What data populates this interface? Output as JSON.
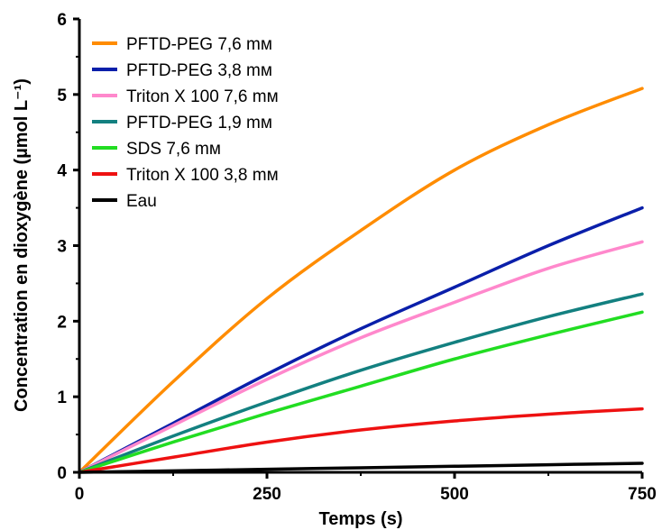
{
  "chart_data": {
    "type": "line",
    "title": "",
    "xlabel": "Temps (s)",
    "ylabel": "Concentration en dioxygène (µmol L⁻¹)",
    "xlim": [
      0,
      750
    ],
    "ylim": [
      0,
      6
    ],
    "xticks": [
      0,
      250,
      500,
      750
    ],
    "yticks": [
      0,
      1,
      2,
      3,
      4,
      5,
      6
    ],
    "x_tick_labels": [
      "0",
      "250",
      "500",
      "750"
    ],
    "y_tick_labels": [
      "0",
      "1",
      "2",
      "3",
      "4",
      "5",
      "6"
    ],
    "grid": false,
    "legend_position": "top-left",
    "x": [
      0,
      125,
      250,
      375,
      500,
      625,
      750
    ],
    "series": [
      {
        "name": "PFTD-PEG 7,6 mм",
        "color": "#ff8c00",
        "values": [
          0,
          1.2,
          2.3,
          3.2,
          4.0,
          4.6,
          5.08
        ]
      },
      {
        "name": "PFTD-PEG 3,8 mм",
        "color": "#0a1faa",
        "values": [
          0,
          0.65,
          1.3,
          1.9,
          2.45,
          3.0,
          3.5
        ]
      },
      {
        "name": "Triton X 100 7,6 mм",
        "color": "#ff88cc",
        "values": [
          0,
          0.62,
          1.23,
          1.78,
          2.25,
          2.7,
          3.05
        ]
      },
      {
        "name": "PFTD-PEG 1,9 mм",
        "color": "#138080",
        "values": [
          0,
          0.48,
          0.93,
          1.35,
          1.72,
          2.06,
          2.36
        ]
      },
      {
        "name": "SDS 7,6 mм",
        "color": "#22dd22",
        "values": [
          0,
          0.4,
          0.78,
          1.14,
          1.5,
          1.82,
          2.12
        ]
      },
      {
        "name": "Triton X 100 3,8 mм",
        "color": "#ee1111",
        "values": [
          0,
          0.2,
          0.4,
          0.56,
          0.68,
          0.77,
          0.84
        ]
      },
      {
        "name": "Eau",
        "color": "#000000",
        "values": [
          0,
          0.02,
          0.04,
          0.06,
          0.08,
          0.1,
          0.12
        ]
      }
    ]
  }
}
